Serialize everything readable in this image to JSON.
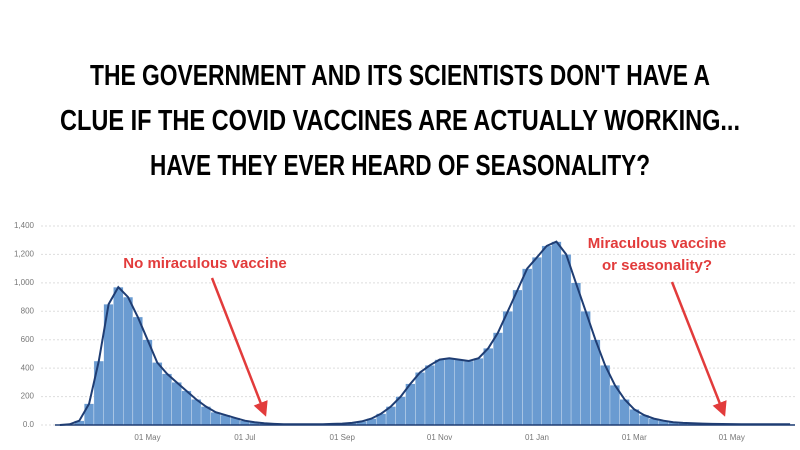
{
  "chart_data": {
    "type": "bar",
    "title": [
      "THE GOVERNMENT AND ITS SCIENTISTS DON'T HAVE A",
      "CLUE IF THE COVID VACCINES ARE ACTUALLY WORKING...",
      "HAVE THEY EVER HEARD OF SEASONALITY?"
    ],
    "annotations": [
      {
        "text": [
          "No miraculous vaccine"
        ]
      },
      {
        "text": [
          "Miraculous vaccine",
          "or seasonality?"
        ]
      }
    ],
    "categories": [
      null,
      null,
      null,
      null,
      null,
      null,
      null,
      null,
      null,
      "01 May",
      null,
      null,
      null,
      null,
      null,
      null,
      null,
      null,
      null,
      "01 Jul",
      null,
      null,
      null,
      null,
      null,
      null,
      null,
      null,
      null,
      "01 Sep",
      null,
      null,
      null,
      null,
      null,
      null,
      null,
      null,
      null,
      "01 Nov",
      null,
      null,
      null,
      null,
      null,
      null,
      null,
      null,
      null,
      "01 Jan",
      null,
      null,
      null,
      null,
      null,
      null,
      null,
      null,
      null,
      "01 Mar",
      null,
      null,
      null,
      null,
      null,
      null,
      null,
      null,
      null,
      "01 May",
      null,
      null,
      null,
      null,
      null,
      null
    ],
    "values": [
      0,
      5,
      30,
      150,
      450,
      850,
      970,
      900,
      760,
      600,
      440,
      360,
      300,
      240,
      180,
      130,
      90,
      70,
      50,
      30,
      20,
      12,
      8,
      5,
      5,
      5,
      5,
      5,
      8,
      10,
      15,
      25,
      45,
      80,
      130,
      200,
      290,
      370,
      420,
      460,
      470,
      460,
      450,
      470,
      540,
      650,
      800,
      950,
      1100,
      1180,
      1260,
      1290,
      1200,
      1000,
      800,
      600,
      420,
      280,
      180,
      110,
      70,
      45,
      30,
      20,
      15,
      12,
      10,
      8,
      7,
      6,
      5,
      5,
      5,
      5,
      5,
      5
    ],
    "color": "#6a9bd1",
    "line_color": "#1f3d73",
    "ylim": [
      0,
      1400
    ],
    "yticks": [
      {
        "value": 0,
        "label": "0.0"
      },
      200,
      400,
      600,
      800,
      {
        "value": 1000,
        "label": "1,000"
      },
      {
        "value": 1200,
        "label": "1,200"
      },
      {
        "value": 1400,
        "label": "1,400"
      }
    ],
    "grid": true
  }
}
